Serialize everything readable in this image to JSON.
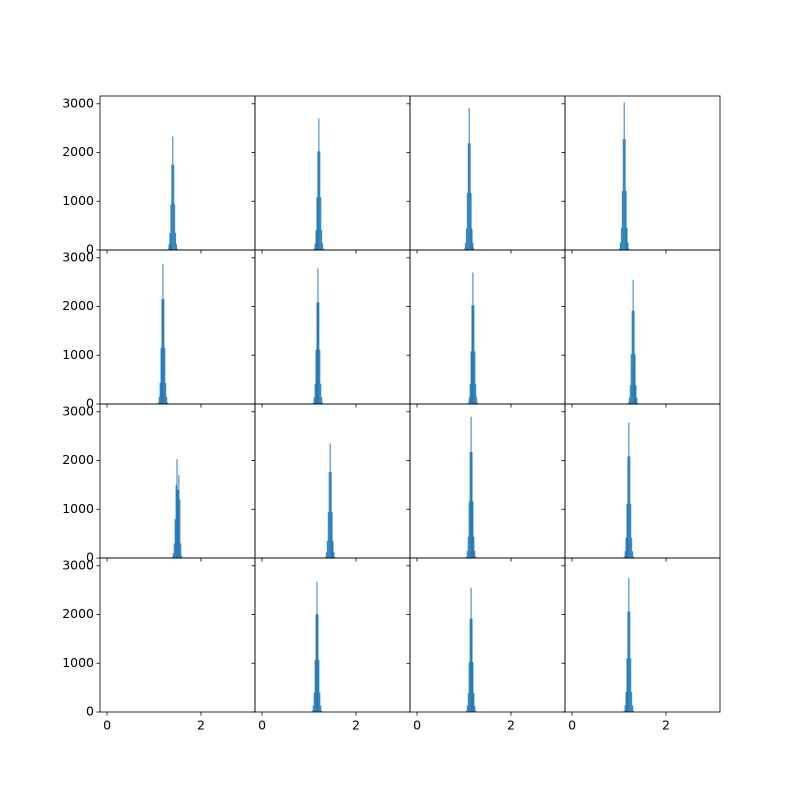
{
  "chart_data": [
    {
      "type": "histogram",
      "color": "#1f77b4",
      "xlim": [
        -0.15,
        3.15
      ],
      "ylim": [
        0,
        3160
      ],
      "xticks": [
        0,
        2
      ],
      "yticks": [
        0,
        1000,
        2000,
        3000
      ],
      "bins": [
        1.29,
        1.31,
        1.33,
        1.35,
        1.37,
        1.39,
        1.41,
        1.43,
        1.45,
        1.47,
        1.49,
        1.51
      ],
      "values": [
        23,
        117,
        350,
        932,
        1748,
        2330,
        1748,
        932,
        350,
        117,
        23
      ]
    },
    {
      "type": "histogram",
      "color": "#1f77b4",
      "xlim": [
        -0.15,
        3.15
      ],
      "ylim": [
        0,
        3160
      ],
      "xticks": [
        0,
        2
      ],
      "yticks": [
        0,
        1000,
        2000,
        3000
      ],
      "bins": [
        1.1,
        1.12,
        1.14,
        1.16,
        1.18,
        1.2,
        1.22,
        1.24,
        1.26,
        1.28,
        1.3,
        1.32
      ],
      "values": [
        27,
        135,
        405,
        1080,
        2025,
        2700,
        2025,
        1080,
        405,
        135,
        27
      ]
    },
    {
      "type": "histogram",
      "color": "#1f77b4",
      "xlim": [
        -0.15,
        3.15
      ],
      "ylim": [
        0,
        3160
      ],
      "xticks": [
        0,
        2
      ],
      "yticks": [
        0,
        1000,
        2000,
        3000
      ],
      "bins": [
        1,
        1.02,
        1.04,
        1.06,
        1.08,
        1.1,
        1.12,
        1.14,
        1.16,
        1.18,
        1.2,
        1.22
      ],
      "values": [
        29,
        146,
        438,
        1168,
        2190,
        2920,
        2190,
        1168,
        438,
        146,
        29
      ]
    },
    {
      "type": "histogram",
      "color": "#1f77b4",
      "xlim": [
        -0.15,
        3.15
      ],
      "ylim": [
        0,
        3160
      ],
      "xticks": [
        0,
        2
      ],
      "yticks": [
        0,
        1000,
        2000,
        3000
      ],
      "bins": [
        1,
        1.02,
        1.04,
        1.06,
        1.08,
        1.1,
        1.12,
        1.14,
        1.16,
        1.18,
        1.2,
        1.22
      ],
      "values": [
        30,
        152,
        455,
        1212,
        2273,
        3030,
        2273,
        1212,
        455,
        152,
        30
      ]
    },
    {
      "type": "histogram",
      "color": "#1f77b4",
      "xlim": [
        -0.15,
        3.15
      ],
      "ylim": [
        0,
        3160
      ],
      "xticks": [
        0,
        2
      ],
      "yticks": [
        0,
        1000,
        2000,
        3000
      ],
      "bins": [
        1.08,
        1.1,
        1.12,
        1.14,
        1.16,
        1.18,
        1.2,
        1.22,
        1.24,
        1.26,
        1.28,
        1.3
      ],
      "values": [
        29,
        144,
        431,
        1148,
        2153,
        2870,
        2153,
        1148,
        431,
        144,
        29
      ]
    },
    {
      "type": "histogram",
      "color": "#1f77b4",
      "xlim": [
        -0.15,
        3.15
      ],
      "ylim": [
        0,
        3160
      ],
      "xticks": [
        0,
        2
      ],
      "yticks": [
        0,
        1000,
        2000,
        3000
      ],
      "bins": [
        1.08,
        1.1,
        1.12,
        1.14,
        1.16,
        1.18,
        1.2,
        1.22,
        1.24,
        1.26,
        1.28,
        1.3
      ],
      "values": [
        28,
        139,
        417,
        1112,
        2085,
        2780,
        2085,
        1112,
        417,
        139,
        28
      ]
    },
    {
      "type": "histogram",
      "color": "#1f77b4",
      "xlim": [
        -0.15,
        3.15
      ],
      "ylim": [
        0,
        3160
      ],
      "xticks": [
        0,
        2
      ],
      "yticks": [
        0,
        1000,
        2000,
        3000
      ],
      "bins": [
        1.08,
        1.1,
        1.12,
        1.14,
        1.16,
        1.18,
        1.2,
        1.22,
        1.24,
        1.26,
        1.28,
        1.3
      ],
      "values": [
        27,
        135,
        405,
        1080,
        2025,
        2700,
        2025,
        1080,
        405,
        135,
        27
      ]
    },
    {
      "type": "histogram",
      "color": "#1f77b4",
      "xlim": [
        -0.15,
        3.15
      ],
      "ylim": [
        0,
        3160
      ],
      "xticks": [
        0,
        2
      ],
      "yticks": [
        0,
        1000,
        2000,
        3000
      ],
      "bins": [
        1.19,
        1.21,
        1.23,
        1.25,
        1.27,
        1.29,
        1.31,
        1.33,
        1.35,
        1.37,
        1.39,
        1.41
      ],
      "values": [
        26,
        128,
        383,
        1020,
        1913,
        2550,
        1913,
        1020,
        383,
        128,
        26
      ]
    },
    {
      "type": "histogram",
      "color": "#1f77b4",
      "xlim": [
        -0.15,
        3.15
      ],
      "ylim": [
        0,
        3160
      ],
      "xticks": [
        0,
        2
      ],
      "yticks": [
        0,
        1000,
        2000,
        3000
      ],
      "bins": [
        1.38,
        1.4,
        1.42,
        1.44,
        1.46,
        1.48,
        1.5,
        1.52,
        1.54,
        1.56,
        1.58,
        1.6
      ],
      "values": [
        20,
        100,
        300,
        800,
        1500,
        2030,
        1400,
        1700,
        1200,
        300,
        50
      ]
    },
    {
      "type": "histogram",
      "color": "#1f77b4",
      "xlim": [
        -0.15,
        3.15
      ],
      "ylim": [
        0,
        3160
      ],
      "xticks": [
        0,
        2
      ],
      "yticks": [
        0,
        1000,
        2000,
        3000
      ],
      "bins": [
        1.34,
        1.36,
        1.38,
        1.4,
        1.42,
        1.44,
        1.46,
        1.48,
        1.5,
        1.52,
        1.54,
        1.56
      ],
      "values": [
        24,
        118,
        353,
        940,
        1763,
        2350,
        1763,
        940,
        353,
        118,
        24
      ]
    },
    {
      "type": "histogram",
      "color": "#1f77b4",
      "xlim": [
        -0.15,
        3.15
      ],
      "ylim": [
        0,
        3160
      ],
      "xticks": [
        0,
        2
      ],
      "yticks": [
        0,
        1000,
        2000,
        3000
      ],
      "bins": [
        1.04,
        1.06,
        1.08,
        1.1,
        1.12,
        1.14,
        1.16,
        1.18,
        1.2,
        1.22,
        1.24,
        1.26
      ],
      "values": [
        29,
        145,
        435,
        1160,
        2175,
        2900,
        2175,
        1160,
        435,
        145,
        29
      ]
    },
    {
      "type": "histogram",
      "color": "#1f77b4",
      "xlim": [
        -0.15,
        3.15
      ],
      "ylim": [
        0,
        3160
      ],
      "xticks": [
        0,
        2
      ],
      "yticks": [
        0,
        1000,
        2000,
        3000
      ],
      "bins": [
        1.1,
        1.12,
        1.14,
        1.16,
        1.18,
        1.2,
        1.22,
        1.24,
        1.26,
        1.28,
        1.3,
        1.32
      ],
      "values": [
        28,
        139,
        417,
        1112,
        2085,
        2780,
        2085,
        1112,
        417,
        139,
        28
      ]
    },
    {
      "type": "histogram",
      "color": "#1f77b4",
      "xlim": [
        -0.15,
        3.15
      ],
      "ylim": [
        0,
        3160
      ],
      "xticks": [
        0,
        2
      ],
      "yticks": [
        0,
        1000,
        2000,
        3000
      ]
    },
    {
      "type": "histogram",
      "color": "#1f77b4",
      "xlim": [
        -0.15,
        3.15
      ],
      "ylim": [
        0,
        3160
      ],
      "xticks": [
        0,
        2
      ],
      "yticks": [
        0,
        1000,
        2000,
        3000
      ],
      "bins": [
        1.06,
        1.08,
        1.1,
        1.12,
        1.14,
        1.16,
        1.18,
        1.2,
        1.22,
        1.24,
        1.26,
        1.28
      ],
      "values": [
        27,
        134,
        401,
        1068,
        2003,
        2670,
        2003,
        1068,
        401,
        134,
        27
      ]
    },
    {
      "type": "histogram",
      "color": "#1f77b4",
      "xlim": [
        -0.15,
        3.15
      ],
      "ylim": [
        0,
        3160
      ],
      "xticks": [
        0,
        2
      ],
      "yticks": [
        0,
        1000,
        2000,
        3000
      ],
      "bins": [
        1.04,
        1.06,
        1.08,
        1.1,
        1.12,
        1.14,
        1.16,
        1.18,
        1.2,
        1.22,
        1.24,
        1.26
      ],
      "values": [
        26,
        128,
        383,
        1020,
        1913,
        2550,
        1913,
        1020,
        383,
        128,
        26
      ]
    },
    {
      "type": "histogram",
      "color": "#1f77b4",
      "xlim": [
        -0.15,
        3.15
      ],
      "ylim": [
        0,
        3160
      ],
      "xticks": [
        0,
        2
      ],
      "yticks": [
        0,
        1000,
        2000,
        3000
      ],
      "bins": [
        1.1,
        1.12,
        1.14,
        1.16,
        1.18,
        1.2,
        1.22,
        1.24,
        1.26,
        1.28,
        1.3,
        1.32
      ],
      "values": [
        28,
        138,
        413,
        1100,
        2063,
        2750,
        2063,
        1100,
        413,
        138,
        28
      ]
    }
  ]
}
